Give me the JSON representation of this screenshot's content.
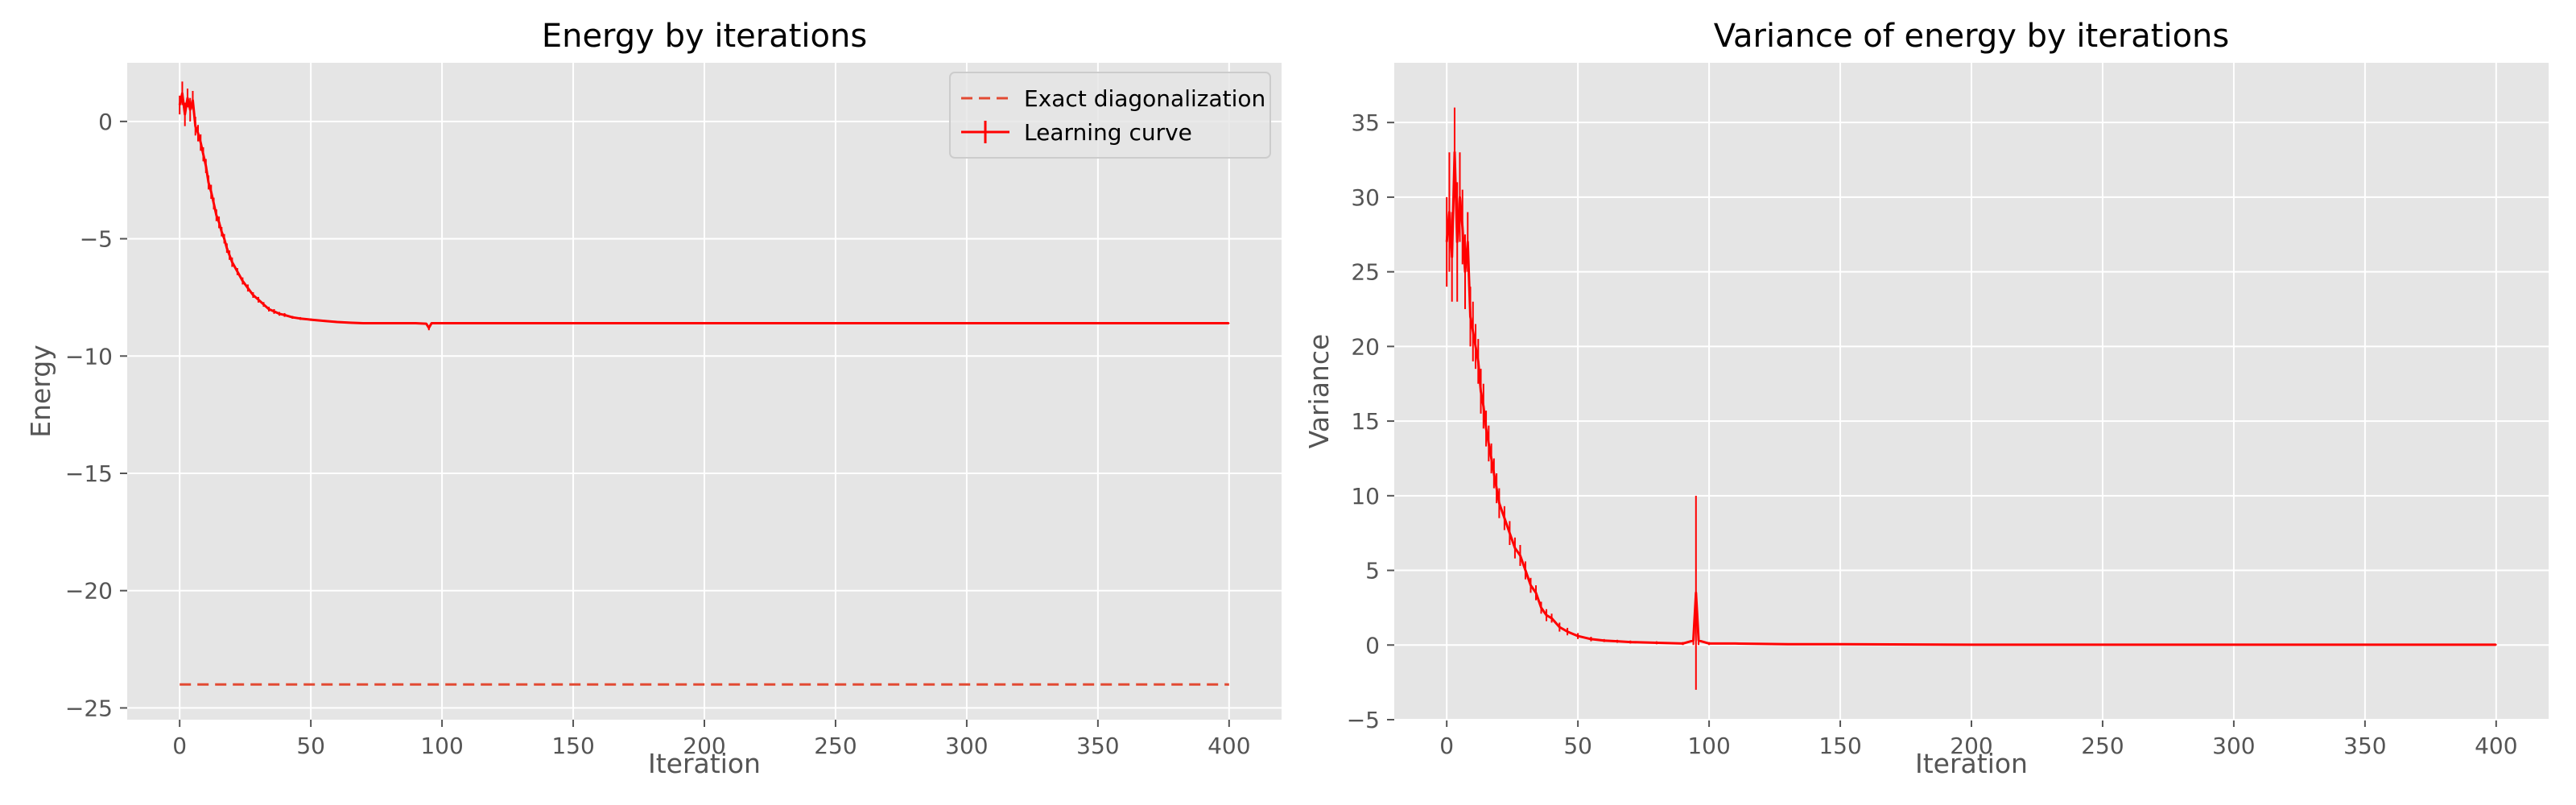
{
  "colors": {
    "plot_bg": "#e5e5e5",
    "grid": "#ffffff",
    "learning": "#ff0000",
    "exact": "#e24a33",
    "tick": "#555555"
  },
  "chart_data": [
    {
      "type": "line",
      "title": "Energy by iterations",
      "xlabel": "Iteration",
      "ylabel": "Energy",
      "xlim": [
        -20,
        420
      ],
      "ylim": [
        -25.5,
        2.5
      ],
      "xticks": [
        0,
        50,
        100,
        150,
        200,
        250,
        300,
        350,
        400
      ],
      "yticks": [
        0,
        -5,
        -10,
        -15,
        -20,
        -25
      ],
      "xtick_labels": [
        "0",
        "50",
        "100",
        "150",
        "200",
        "250",
        "300",
        "350",
        "400"
      ],
      "ytick_labels": [
        "0",
        "−5",
        "−10",
        "−15",
        "−20",
        "−25"
      ],
      "grid": true,
      "legend_position": "top-right",
      "series": [
        {
          "name": "Exact diagonalization",
          "style": "dashed",
          "color": "#e24a33",
          "x": [
            0,
            400
          ],
          "y": [
            -24.0,
            -24.0
          ]
        },
        {
          "name": "Learning curve",
          "style": "solid-errorbar",
          "color": "#ff0000",
          "x": [
            0,
            1,
            2,
            3,
            4,
            5,
            6,
            7,
            8,
            9,
            10,
            11,
            12,
            13,
            14,
            15,
            16,
            17,
            18,
            19,
            20,
            22,
            24,
            26,
            28,
            30,
            32,
            34,
            36,
            38,
            40,
            43,
            46,
            50,
            55,
            60,
            65,
            70,
            80,
            90,
            94,
            95,
            96,
            100,
            120,
            150,
            200,
            250,
            300,
            350,
            400
          ],
          "y": [
            0.7,
            1.2,
            0.3,
            1.0,
            0.5,
            0.9,
            -0.2,
            -0.5,
            -0.9,
            -1.4,
            -1.9,
            -2.6,
            -3.0,
            -3.5,
            -4.0,
            -4.3,
            -4.7,
            -5.0,
            -5.4,
            -5.7,
            -6.0,
            -6.4,
            -6.8,
            -7.1,
            -7.4,
            -7.6,
            -7.8,
            -8.0,
            -8.1,
            -8.2,
            -8.25,
            -8.35,
            -8.4,
            -8.45,
            -8.5,
            -8.55,
            -8.58,
            -8.6,
            -8.6,
            -8.6,
            -8.62,
            -8.8,
            -8.6,
            -8.6,
            -8.6,
            -8.6,
            -8.6,
            -8.6,
            -8.6,
            -8.6,
            -8.6
          ],
          "err": [
            0.4,
            0.5,
            0.5,
            0.4,
            0.5,
            0.4,
            0.4,
            0.35,
            0.35,
            0.3,
            0.3,
            0.3,
            0.3,
            0.25,
            0.25,
            0.25,
            0.2,
            0.2,
            0.2,
            0.2,
            0.2,
            0.15,
            0.15,
            0.15,
            0.12,
            0.12,
            0.1,
            0.1,
            0.1,
            0.08,
            0.08,
            0.06,
            0.06,
            0.05,
            0.04,
            0.04,
            0.03,
            0.03,
            0.02,
            0.02,
            0.02,
            0.1,
            0.02,
            0.02,
            0.01,
            0.01,
            0.01,
            0.01,
            0.01,
            0.01,
            0.01
          ]
        }
      ]
    },
    {
      "type": "line",
      "title": "Variance of energy by iterations",
      "xlabel": "Iteration",
      "ylabel": "Variance",
      "xlim": [
        -20,
        420
      ],
      "ylim": [
        -5,
        39
      ],
      "xticks": [
        0,
        50,
        100,
        150,
        200,
        250,
        300,
        350,
        400
      ],
      "yticks": [
        35,
        30,
        25,
        20,
        15,
        10,
        5,
        0,
        -5
      ],
      "xtick_labels": [
        "0",
        "50",
        "100",
        "150",
        "200",
        "250",
        "300",
        "350",
        "400"
      ],
      "ytick_labels": [
        "35",
        "30",
        "25",
        "20",
        "15",
        "10",
        "5",
        "0",
        "−5"
      ],
      "grid": true,
      "series": [
        {
          "color": "#ff0000",
          "style": "solid-errorbar",
          "x": [
            0,
            1,
            2,
            3,
            4,
            5,
            6,
            7,
            8,
            9,
            10,
            11,
            12,
            13,
            14,
            15,
            16,
            17,
            18,
            19,
            20,
            22,
            24,
            26,
            28,
            30,
            32,
            34,
            36,
            38,
            40,
            43,
            46,
            50,
            55,
            60,
            65,
            70,
            80,
            90,
            94,
            95,
            96,
            100,
            110,
            130,
            150,
            200,
            250,
            300,
            350,
            400
          ],
          "y": [
            27,
            29,
            26,
            33,
            27,
            30,
            28,
            25,
            27,
            22,
            21,
            20,
            19,
            17,
            16,
            14.5,
            13.5,
            12.5,
            11.5,
            10.5,
            9.5,
            8.5,
            7.5,
            6.5,
            6.0,
            5.0,
            4.0,
            3.5,
            2.5,
            2.0,
            1.8,
            1.2,
            0.9,
            0.6,
            0.4,
            0.3,
            0.25,
            0.2,
            0.15,
            0.1,
            0.3,
            3.5,
            0.3,
            0.1,
            0.1,
            0.05,
            0.05,
            0.02,
            0.02,
            0.02,
            0.02,
            0.02
          ],
          "err": [
            3,
            4,
            3,
            3,
            4,
            3,
            2.5,
            2.5,
            2,
            2,
            2,
            1.5,
            1.5,
            1.5,
            1.5,
            1.2,
            1.2,
            1.0,
            1.0,
            1.0,
            1.0,
            0.8,
            0.8,
            0.7,
            0.7,
            0.6,
            0.5,
            0.5,
            0.4,
            0.4,
            0.3,
            0.3,
            0.25,
            0.2,
            0.15,
            0.1,
            0.1,
            0.1,
            0.1,
            0.1,
            0.3,
            6.5,
            0.3,
            0.1,
            0.05,
            0.05,
            0.05,
            0.03,
            0.03,
            0.03,
            0.03,
            0.03
          ]
        }
      ]
    }
  ]
}
